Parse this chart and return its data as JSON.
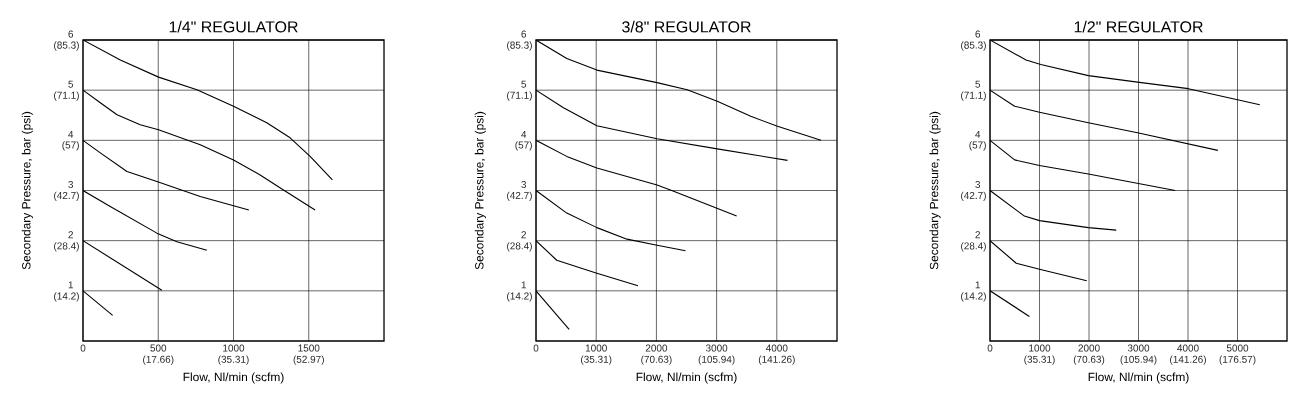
{
  "chart_data": [
    {
      "type": "line",
      "title": "1/4\" REGULATOR",
      "xlabel": "Flow, Nl/min (scfm)",
      "y2label": "Secondary Pressure, bar (psi)",
      "grid": true,
      "xlim": [
        0,
        2000
      ],
      "xticks": [
        0,
        500,
        1000,
        1500
      ],
      "x2lim": [
        0,
        70.63
      ],
      "x2ticks": [
        {
          "value": 17.66,
          "label": "(17.66)"
        },
        {
          "value": 35.31,
          "label": "(35.31)"
        },
        {
          "value": 52.97,
          "label": "(52.97)"
        }
      ],
      "ylim": [
        0,
        6
      ],
      "yticks": [
        1,
        2,
        3,
        4,
        5,
        6
      ],
      "y2lim": [
        0,
        85.3
      ],
      "y2ticks": [
        {
          "value": 14.2,
          "label": "(14.2)"
        },
        {
          "value": 28.4,
          "label": "(28.4)"
        },
        {
          "value": 42.7,
          "label": "(42.7)"
        },
        {
          "value": 57,
          "label": "(57)"
        },
        {
          "value": 71.1,
          "label": "(71.1)"
        },
        {
          "value": 85.3,
          "label": "(85.3)"
        }
      ],
      "series": [
        {
          "color": "#000000",
          "x": [
            0,
            248,
            502,
            757,
            1000,
            1221,
            1376,
            1509,
            1657
          ],
          "values": [
            6,
            5.6,
            5.26,
            5.01,
            4.68,
            4.35,
            4.05,
            3.68,
            3.21
          ]
        },
        {
          "color": "#000000",
          "x": [
            0,
            115,
            226,
            380,
            502,
            779,
            1000,
            1177,
            1332,
            1542
          ],
          "values": [
            5,
            4.75,
            4.51,
            4.31,
            4.21,
            3.91,
            3.61,
            3.31,
            3.01,
            2.61
          ]
        },
        {
          "color": "#000000",
          "x": [
            0,
            115,
            292,
            491,
            779,
            1102
          ],
          "values": [
            4,
            3.75,
            3.38,
            3.18,
            2.88,
            2.61
          ]
        },
        {
          "color": "#000000",
          "x": [
            0,
            181,
            491,
            624,
            823
          ],
          "values": [
            3,
            2.68,
            2.15,
            1.98,
            1.81
          ]
        },
        {
          "color": "#000000",
          "x": [
            0,
            524
          ],
          "values": [
            2,
            1.01
          ]
        },
        {
          "color": "#000000",
          "x": [
            0,
            197
          ],
          "values": [
            1,
            0.51
          ]
        }
      ]
    },
    {
      "type": "line",
      "title": "3/8\" REGULATOR",
      "xlabel": "Flow, Nl/min (scfm)",
      "y2label": "Secondary Pressure, bar (psi)",
      "grid": true,
      "xlim": [
        0,
        5000
      ],
      "xticks": [
        0,
        1000,
        2000,
        3000,
        4000
      ],
      "x2lim": [
        0,
        176.57
      ],
      "x2ticks": [
        {
          "value": 35.31,
          "label": "(35.31)"
        },
        {
          "value": 70.63,
          "label": "(70.63)"
        },
        {
          "value": 105.94,
          "label": "(105.94)"
        },
        {
          "value": 141.26,
          "label": "(141.26)"
        }
      ],
      "ylim": [
        0,
        6
      ],
      "yticks": [
        1,
        2,
        3,
        4,
        5,
        6
      ],
      "y2lim": [
        0,
        85.3
      ],
      "y2ticks": [
        {
          "value": 14.2,
          "label": "(14.2)"
        },
        {
          "value": 28.4,
          "label": "(28.4)"
        },
        {
          "value": 42.7,
          "label": "(42.7)"
        },
        {
          "value": 57,
          "label": "(57)"
        },
        {
          "value": 71.1,
          "label": "(71.1)"
        },
        {
          "value": 85.3,
          "label": "(85.3)"
        }
      ],
      "series": [
        {
          "color": "#000000",
          "x": [
            0,
            511,
            1011,
            2011,
            2511,
            3011,
            3567,
            4011,
            4733
          ],
          "values": [
            6,
            5.63,
            5.4,
            5.15,
            5.01,
            4.78,
            4.48,
            4.28,
            4.0
          ]
        },
        {
          "color": "#000000",
          "x": [
            0,
            456,
            1011,
            2011,
            3011,
            4178
          ],
          "values": [
            5,
            4.65,
            4.29,
            4.03,
            3.83,
            3.6
          ]
        },
        {
          "color": "#000000",
          "x": [
            0,
            511,
            1011,
            2011,
            2233,
            3333
          ],
          "values": [
            4,
            3.68,
            3.45,
            3.11,
            3.01,
            2.49
          ]
        },
        {
          "color": "#000000",
          "x": [
            0,
            511,
            1011,
            1511,
            2011,
            2483
          ],
          "values": [
            3,
            2.55,
            2.26,
            2.03,
            1.91,
            1.8
          ]
        },
        {
          "color": "#000000",
          "x": [
            0,
            344,
            1011,
            1694
          ],
          "values": [
            2,
            1.61,
            1.35,
            1.1
          ]
        },
        {
          "color": "#000000",
          "x": [
            0,
            550
          ],
          "values": [
            1,
            0.23
          ]
        }
      ]
    },
    {
      "type": "line",
      "title": "1/2\" REGULATOR",
      "xlabel": "Flow, Nl/min (scfm)",
      "y2label": "Secondary Pressure, bar (psi)",
      "grid": true,
      "xlim": [
        0,
        6000
      ],
      "xticks": [
        0,
        1000,
        2000,
        3000,
        4000,
        5000
      ],
      "x2lim": [
        0,
        211.89
      ],
      "x2ticks": [
        {
          "value": 35.31,
          "label": "(35.31)"
        },
        {
          "value": 70.63,
          "label": "(70.63)"
        },
        {
          "value": 105.94,
          "label": "(105.94)"
        },
        {
          "value": 141.26,
          "label": "(141.26)"
        },
        {
          "value": 176.57,
          "label": "(176.57)"
        }
      ],
      "ylim": [
        0,
        6
      ],
      "yticks": [
        1,
        2,
        3,
        4,
        5,
        6
      ],
      "y2lim": [
        0,
        85.3
      ],
      "y2ticks": [
        {
          "value": 14.2,
          "label": "(14.2)"
        },
        {
          "value": 28.4,
          "label": "(28.4)"
        },
        {
          "value": 42.7,
          "label": "(42.7)"
        },
        {
          "value": 57,
          "label": "(57)"
        },
        {
          "value": 71.1,
          "label": "(71.1)"
        },
        {
          "value": 85.3,
          "label": "(85.3)"
        }
      ],
      "series": [
        {
          "color": "#000000",
          "x": [
            0,
            728,
            1026,
            1987,
            2980,
            4007,
            5450
          ],
          "values": [
            6,
            5.6,
            5.51,
            5.29,
            5.16,
            5.03,
            4.71
          ]
        },
        {
          "color": "#000000",
          "x": [
            0,
            497,
            1000,
            1987,
            2980,
            4603
          ],
          "values": [
            5,
            4.68,
            4.56,
            4.35,
            4.15,
            3.8
          ]
        },
        {
          "color": "#000000",
          "x": [
            0,
            497,
            1000,
            1987,
            3742
          ],
          "values": [
            4,
            3.61,
            3.5,
            3.33,
            3.0
          ]
        },
        {
          "color": "#000000",
          "x": [
            0,
            695,
            1000,
            1987,
            2550
          ],
          "values": [
            3,
            2.49,
            2.4,
            2.26,
            2.21
          ]
        },
        {
          "color": "#000000",
          "x": [
            0,
            530,
            1000,
            1954
          ],
          "values": [
            2,
            1.55,
            1.43,
            1.2
          ]
        },
        {
          "color": "#000000",
          "x": [
            0,
            795
          ],
          "values": [
            1,
            0.49
          ]
        }
      ]
    }
  ]
}
